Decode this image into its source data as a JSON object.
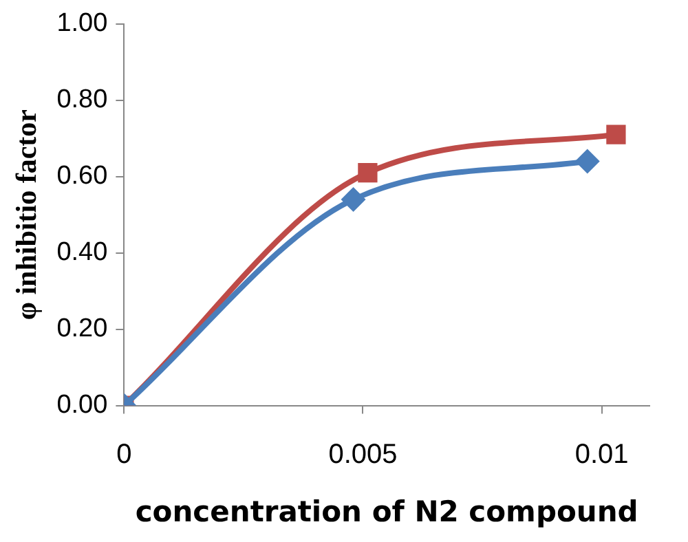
{
  "chart_data": {
    "type": "line",
    "xlabel": "concentration of N2 compound",
    "ylabel": "φ inhibitio factor",
    "xlim": [
      0,
      0.011
    ],
    "xticks": [
      0,
      0.005,
      0.01
    ],
    "ylim": [
      0,
      1
    ],
    "yticks": [
      {
        "value": 0,
        "label": "0.00"
      },
      {
        "value": 0.2,
        "label": "0.20"
      },
      {
        "value": 0.4,
        "label": "0.40"
      },
      {
        "value": 0.6,
        "label": "0.60"
      },
      {
        "value": 0.8,
        "label": "0.80"
      },
      {
        "value": 1,
        "label": "1.00"
      }
    ],
    "grid": false,
    "legend": false,
    "line_style": "solid",
    "series": [
      {
        "color": "#4a7ebb",
        "marker": "diamond",
        "x": [
          0,
          0.0048,
          0.0097
        ],
        "values": [
          0,
          0.54,
          0.64
        ]
      },
      {
        "color": "#be4b48",
        "marker": "square",
        "x": [
          0,
          0.0051,
          0.0103
        ],
        "values": [
          0,
          0.61,
          0.71
        ]
      }
    ]
  }
}
